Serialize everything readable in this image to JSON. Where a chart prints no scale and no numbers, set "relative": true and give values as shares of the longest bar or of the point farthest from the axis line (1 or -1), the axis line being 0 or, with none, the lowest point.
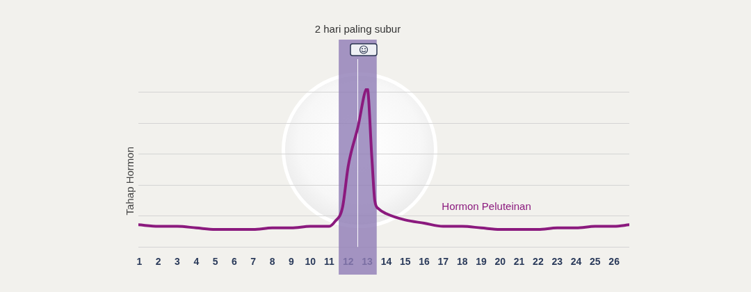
{
  "chart_data": {
    "type": "line",
    "relative": true,
    "ylabel": "Tahap Hormon",
    "x": [
      0.95,
      2,
      3,
      4,
      5,
      6,
      7,
      8,
      9,
      10,
      11,
      11.3,
      11.7,
      12,
      12.5,
      13,
      13.25,
      13.4,
      13.6,
      14,
      15,
      16,
      17,
      18,
      19,
      20,
      21,
      22,
      23,
      24,
      25,
      26,
      26.8
    ],
    "xlim": [
      0.95,
      26.8
    ],
    "xticks": [
      1,
      2,
      3,
      4,
      5,
      6,
      7,
      8,
      9,
      10,
      11,
      12,
      13,
      14,
      15,
      16,
      17,
      18,
      19,
      20,
      21,
      22,
      23,
      24,
      25,
      26
    ],
    "series": [
      {
        "name": "Hormon Peluteinan",
        "color": "#8b1a7e",
        "values": [
          0.14,
          0.13,
          0.13,
          0.12,
          0.11,
          0.11,
          0.11,
          0.12,
          0.12,
          0.13,
          0.13,
          0.16,
          0.25,
          0.51,
          0.75,
          1,
          0.55,
          0.29,
          0.24,
          0.21,
          0.17,
          0.15,
          0.13,
          0.13,
          0.12,
          0.11,
          0.11,
          0.11,
          0.12,
          0.12,
          0.13,
          0.13,
          0.14
        ]
      }
    ],
    "bands": [
      {
        "axis": "x",
        "from": 11.5,
        "to": 13.5,
        "label": "2 hari paling subur",
        "color": "#8e7cb5"
      }
    ],
    "ref_lines": [
      {
        "axis": "x",
        "value": 12.5,
        "color": "#ffffff"
      }
    ],
    "grid": "y",
    "legend": false,
    "marker": "none",
    "line_style": "solid",
    "tick_labels": "x"
  }
}
